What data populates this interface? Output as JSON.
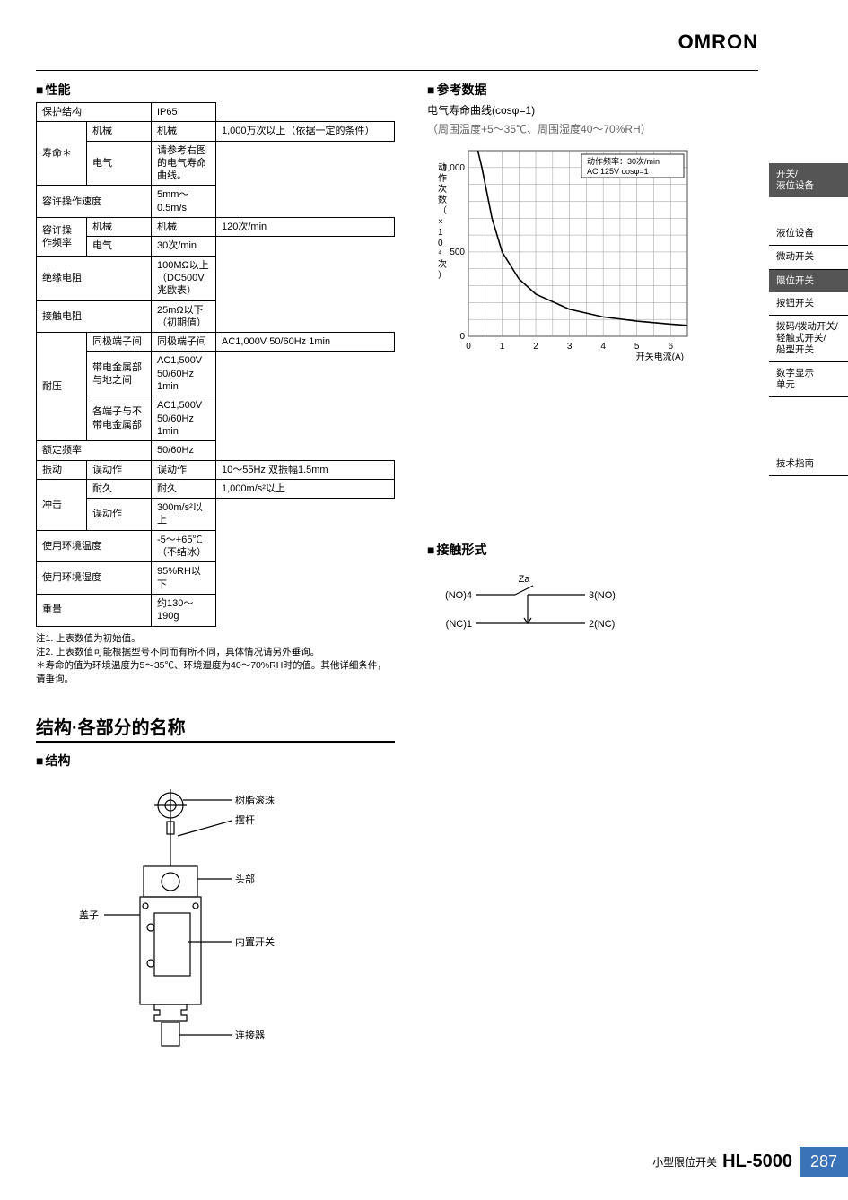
{
  "brand": "OMRON",
  "sections": {
    "perf_title": "性能",
    "ref_title": "参考数据",
    "struct_heading": "结构·各部分的名称",
    "struct_title": "结构",
    "contact_title": "接触形式"
  },
  "chart": {
    "title": "电气寿命曲线(cosφ=1)",
    "cond": "（周围温度+5～35℃、周围湿度40～70%RH）",
    "yaxis_label": "动作次数（×10⁴次）",
    "xaxis_label": "开关电流(A)",
    "legend": "动作频率：30次/min\nAC 125V cosφ=1",
    "xlim": [
      0,
      6.5
    ],
    "ylim": [
      0,
      1100
    ],
    "xticks": [
      0,
      1,
      2,
      3,
      4,
      5,
      6
    ],
    "yticks": [
      0,
      500,
      1000
    ],
    "grid_color": "#999",
    "line_color": "#000",
    "bg": "#fff",
    "points": [
      {
        "x": 0.28,
        "y": 1100
      },
      {
        "x": 0.4,
        "y": 1000
      },
      {
        "x": 0.7,
        "y": 700
      },
      {
        "x": 1.0,
        "y": 500
      },
      {
        "x": 1.5,
        "y": 340
      },
      {
        "x": 2.0,
        "y": 250
      },
      {
        "x": 3.0,
        "y": 160
      },
      {
        "x": 4.0,
        "y": 115
      },
      {
        "x": 5.0,
        "y": 90
      },
      {
        "x": 6.0,
        "y": 72
      },
      {
        "x": 6.5,
        "y": 65
      }
    ]
  },
  "spec_rows": [
    {
      "k": "保护结构",
      "s": "",
      "v": "IP65"
    },
    {
      "k": "寿命＊",
      "s": "机械",
      "v": "1,000万次以上（依据一定的条件）"
    },
    {
      "k": "",
      "s": "电气",
      "v": "请参考右图的电气寿命曲线。"
    },
    {
      "k": "容许操作速度",
      "s": "",
      "v": "5mm～0.5m/s"
    },
    {
      "k": "容许操作频率",
      "s": "机械",
      "v": "120次/min"
    },
    {
      "k": "",
      "s": "电气",
      "v": "30次/min"
    },
    {
      "k": "绝缘电阻",
      "s": "",
      "v": "100MΩ以上（DC500V兆欧表）"
    },
    {
      "k": "接触电阻",
      "s": "",
      "v": "25mΩ以下（初期值）"
    },
    {
      "k": "耐压",
      "s": "同极端子间",
      "v": "AC1,000V 50/60Hz 1min"
    },
    {
      "k": "",
      "s": "带电金属部与地之间",
      "v": "AC1,500V 50/60Hz 1min"
    },
    {
      "k": "",
      "s": "各端子与不带电金属部",
      "v": "AC1,500V 50/60Hz 1min"
    },
    {
      "k": "额定频率",
      "s": "",
      "v": "50/60Hz"
    },
    {
      "k": "振动",
      "s": "误动作",
      "v": "10～55Hz 双振幅1.5mm"
    },
    {
      "k": "冲击",
      "s": "耐久",
      "v": "1,000m/s²以上"
    },
    {
      "k": "",
      "s": "误动作",
      "v": "300m/s²以上"
    },
    {
      "k": "使用环境温度",
      "s": "",
      "v": "-5～+65℃\n（不结冰）"
    },
    {
      "k": "使用环境湿度",
      "s": "",
      "v": "95%RH以下"
    },
    {
      "k": "重量",
      "s": "",
      "v": "约130～190g"
    }
  ],
  "notes": [
    "注1. 上表数值为初始值。",
    "注2. 上表数值可能根据型号不同而有所不同，具体情况请另外垂询。",
    "＊寿命的值为环境温度为5～35℃、环境湿度为40～70%RH时的值。其他详细条件，请垂询。"
  ],
  "struct_labels": {
    "roller": "树脂滚珠",
    "lever": "摆杆",
    "head": "头部",
    "cover": "盖子",
    "switch": "内置开关",
    "connector": "连接器"
  },
  "contact": {
    "top": "Za",
    "no4": "(NO)4",
    "no3": "3(NO)",
    "nc1": "(NC)1",
    "nc2": "2(NC)"
  },
  "sidebar": {
    "group": "开关/\n液位设备",
    "items": [
      "液位设备",
      "微动开关",
      "限位开关",
      "按钮开关",
      "拨码/拨动开关/\n轻触式开关/\n船型开关",
      "数字显示\n单元"
    ],
    "active_index": 2,
    "tech": "技术指南"
  },
  "footer": {
    "pname": "小型限位开关",
    "pmodel": "HL-5000",
    "page": "287",
    "page_bg": "#3b73b9"
  }
}
